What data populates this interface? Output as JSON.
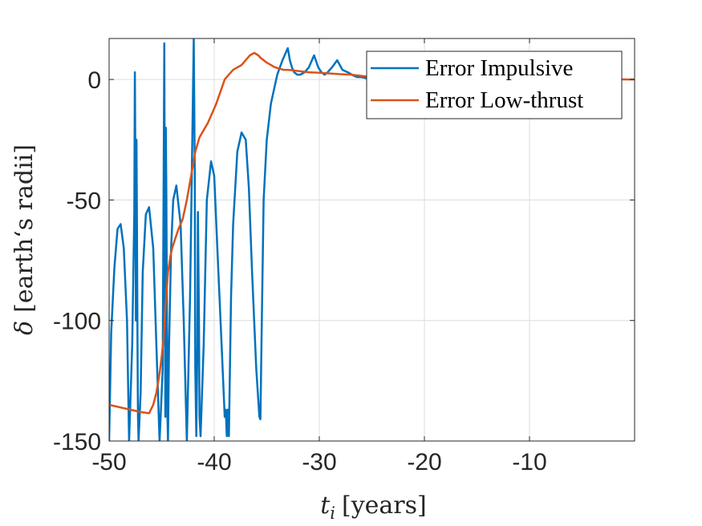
{
  "chart_data": {
    "type": "line",
    "title": "",
    "xlabel_symbol": "t",
    "xlabel_subscript": "i",
    "xlabel_unit": "[years]",
    "ylabel_symbol": "δ",
    "ylabel_unit": "[earth‘s radii]",
    "xlim": [
      -50,
      0
    ],
    "ylim": [
      -150,
      17
    ],
    "xticks": [
      -50,
      -40,
      -30,
      -20,
      -10
    ],
    "xtick_labels": [
      "-50",
      "-40",
      "-30",
      "-20",
      "-10"
    ],
    "yticks": [
      -150,
      -100,
      -50,
      0
    ],
    "ytick_labels": [
      "-150",
      "-100",
      "-50",
      "0"
    ],
    "grid": true,
    "legend_position": "top-right",
    "series": [
      {
        "name": "Error Impulsive",
        "color": "#0072BD",
        "x": [
          -50,
          -49.8,
          -49.5,
          -49.2,
          -48.9,
          -48.6,
          -48.3,
          -48.1,
          -47.8,
          -47.6,
          -47.55,
          -47.5,
          -47.45,
          -47.4,
          -47.35,
          -47.3,
          -47.25,
          -47.2,
          -47.0,
          -46.8,
          -46.5,
          -46.2,
          -45.8,
          -45.5,
          -45.2,
          -44.9,
          -44.75,
          -44.7,
          -44.65,
          -44.6,
          -44.55,
          -44.5,
          -44.45,
          -44.4,
          -44.3,
          -44.1,
          -43.9,
          -43.6,
          -43.2,
          -42.9,
          -42.6,
          -42.3,
          -41.95,
          -41.85,
          -41.8,
          -41.7,
          -41.6,
          -41.55,
          -41.45,
          -41.4,
          -41.3,
          -41.0,
          -40.7,
          -40.3,
          -40.0,
          -39.7,
          -39.3,
          -39.0,
          -38.9,
          -38.8,
          -38.7,
          -38.6,
          -38.5,
          -38.4,
          -38.2,
          -37.8,
          -37.4,
          -37.0,
          -36.7,
          -36.4,
          -36.0,
          -35.7,
          -35.6,
          -35.5,
          -35.3,
          -35.0,
          -34.6,
          -34.0,
          -33.5,
          -33.0,
          -32.8,
          -32.6,
          -32.4,
          -32.1,
          -31.8,
          -31.4,
          -31.0,
          -30.5,
          -30.1,
          -29.8,
          -29.5,
          -29.2,
          -28.8,
          -28.3,
          -27.8,
          -27.3,
          -26.9,
          -26.7,
          -26.4,
          -26.0,
          -25.5,
          -25.0,
          -24.6,
          -24.0
        ],
        "y": [
          -150,
          -105,
          -78,
          -62,
          -60,
          -70,
          -100,
          -150,
          -110,
          -55,
          3,
          -40,
          -100,
          -25,
          -60,
          -110,
          -140,
          -150,
          -130,
          -80,
          -56,
          -53,
          -70,
          -110,
          -150,
          -120,
          15,
          -60,
          -140,
          -20,
          -50,
          -100,
          -140,
          -150,
          -110,
          -70,
          -50,
          -44,
          -60,
          -100,
          -150,
          -90,
          17,
          -40,
          -120,
          -148,
          -110,
          -55,
          -100,
          -140,
          -148,
          -110,
          -50,
          -34,
          -40,
          -70,
          -110,
          -140,
          -137,
          -148,
          -137,
          -148,
          -120,
          -90,
          -60,
          -30,
          -22,
          -25,
          -45,
          -80,
          -120,
          -140,
          -141,
          -110,
          -50,
          -25,
          -10,
          2,
          8,
          13,
          8,
          5,
          3,
          2,
          2,
          3,
          5,
          10,
          5,
          3,
          2,
          3,
          5,
          8,
          4,
          3,
          2,
          1.5,
          1,
          1,
          0.5,
          0,
          0,
          0
        ]
      },
      {
        "name": "Error Low-thrust",
        "color": "#D95319",
        "x": [
          -50,
          -49,
          -48,
          -47,
          -46.2,
          -45.8,
          -45.5,
          -45.2,
          -45.0,
          -44.8,
          -44.6,
          -44.4,
          -44.2,
          -44.0,
          -43.7,
          -43.4,
          -43.0,
          -42.6,
          -42.2,
          -41.8,
          -41.4,
          -41.0,
          -40.6,
          -40.2,
          -39.8,
          -39.4,
          -39.0,
          -38.6,
          -38.2,
          -37.8,
          -37.4,
          -37.0,
          -36.6,
          -36.2,
          -35.8,
          -35.6,
          -35.3,
          -35.0,
          -34.6,
          -34.2,
          -33.8,
          -33.4,
          -33.0,
          -32.5,
          -32.0,
          -31.0,
          -30.0,
          -29.0,
          -28.0,
          -27.0,
          -26.0,
          -25.0,
          -24.0,
          -22.0,
          -20.0,
          -15.0,
          -10.0,
          -5.0,
          0
        ],
        "y": [
          -135,
          -136,
          -137,
          -138,
          -138.5,
          -135,
          -130,
          -122,
          -115,
          -107,
          -92,
          -80,
          -74,
          -70,
          -66,
          -62,
          -58,
          -50,
          -40,
          -30,
          -24,
          -21,
          -18,
          -14,
          -10,
          -5,
          0,
          2,
          4,
          5,
          6,
          8,
          10,
          11,
          10,
          9,
          8,
          7,
          6,
          5,
          4.5,
          4,
          4,
          3.8,
          3.5,
          3,
          2.8,
          2.5,
          2.2,
          2,
          1.5,
          1,
          0.8,
          0.5,
          0.3,
          0.2,
          0.1,
          0.05,
          0
        ]
      }
    ]
  }
}
